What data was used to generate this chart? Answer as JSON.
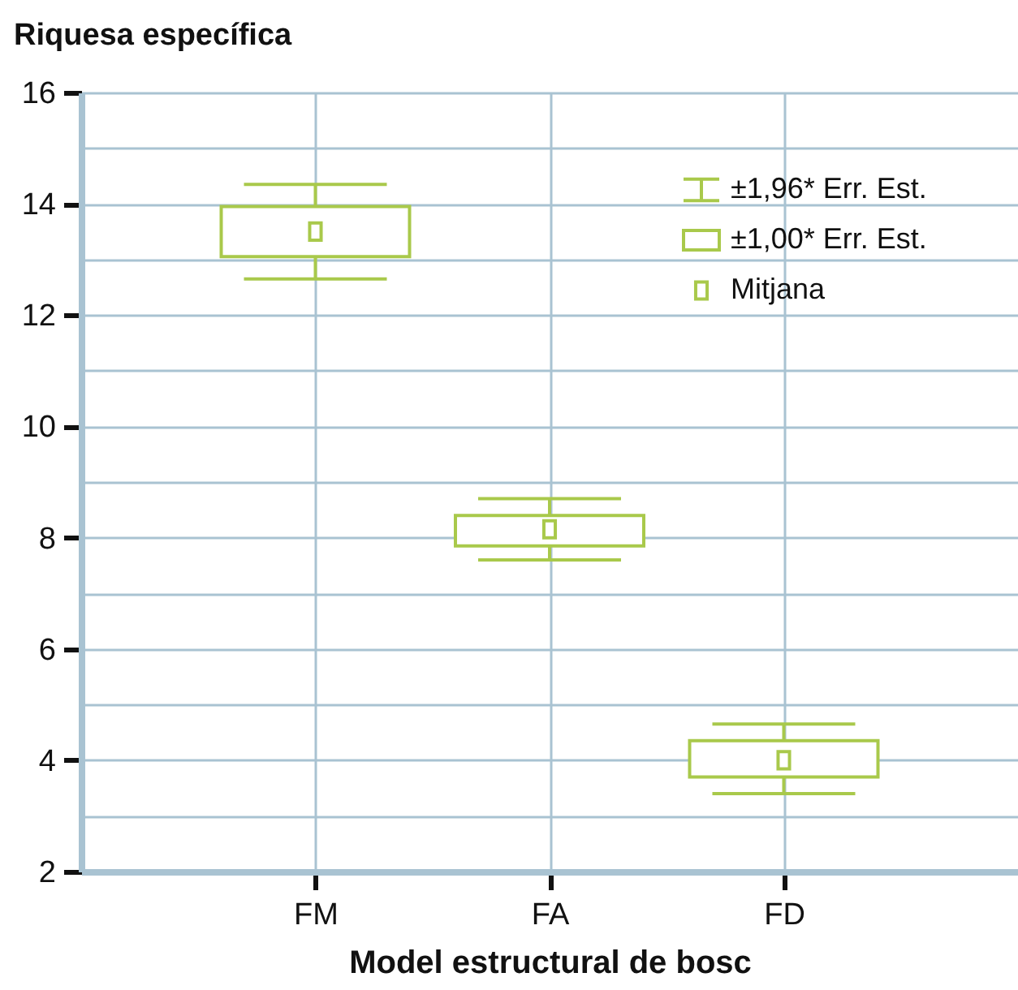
{
  "chart_data": {
    "type": "box",
    "ylabel": "Riquesa específica",
    "xlabel": "Model estructural de bosc",
    "categories": [
      "FM",
      "FA",
      "FD"
    ],
    "boxes": [
      {
        "low": 12.65,
        "q1": 13.05,
        "q3": 13.95,
        "high": 14.35,
        "mean": 13.5
      },
      {
        "low": 7.6,
        "q1": 7.85,
        "q3": 8.4,
        "high": 8.7,
        "mean": 8.15
      },
      {
        "low": 3.4,
        "q1": 3.7,
        "q3": 4.35,
        "high": 4.65,
        "mean": 4.0
      }
    ],
    "color": "#a9c94b",
    "series": [
      {
        "name": "±1,96* Err. Est.",
        "color": "#a9c94b",
        "values": [
          null,
          null,
          null
        ]
      },
      {
        "name": "±1,00* Err. Est.",
        "color": "#a9c94b",
        "values": [
          null,
          null,
          null
        ]
      },
      {
        "name": "Mitjana",
        "color": "#a9c94b",
        "values": [
          null,
          null,
          null
        ]
      }
    ],
    "ylim": [
      2,
      16
    ],
    "yticks": [
      2,
      {
        "value": 3,
        "label": null
      },
      4,
      {
        "value": 5,
        "label": null
      },
      6,
      {
        "value": 7,
        "label": null
      },
      8,
      {
        "value": 9,
        "label": null
      },
      10,
      {
        "value": 11,
        "label": null
      },
      12,
      {
        "value": 13,
        "label": null
      },
      14,
      {
        "value": 15,
        "label": null
      },
      16
    ],
    "grid": true,
    "legend": "top right"
  }
}
